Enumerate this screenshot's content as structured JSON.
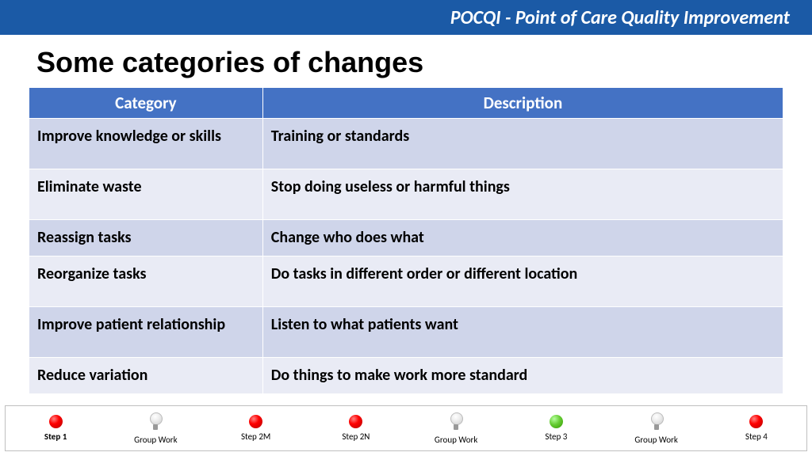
{
  "header": {
    "title": "POCQI - Point of Care Quality Improvement"
  },
  "slide": {
    "title": "Some categories of changes"
  },
  "table": {
    "columns": [
      "Category",
      "Description"
    ],
    "rows": [
      [
        "Improve knowledge or skills",
        "Training or standards"
      ],
      [
        "Eliminate waste",
        "Stop doing useless or harmful things"
      ],
      [
        "Reassign tasks",
        "Change who does what"
      ],
      [
        "Reorganize tasks",
        "Do tasks in different order or different location"
      ],
      [
        "Improve patient relationship",
        "Listen to what patients want"
      ],
      [
        "Reduce variation",
        "Do things to make work more standard"
      ]
    ],
    "header_bg": "#4472c4",
    "header_fg": "#ffffff",
    "row_odd_bg": "#cfd5ea",
    "row_even_bg": "#e9ebf5"
  },
  "footer": {
    "items": [
      {
        "label": "Step 1",
        "icon": "red",
        "bold": true
      },
      {
        "label": "Group Work",
        "icon": "bulb",
        "bold": false
      },
      {
        "label": "Step 2M",
        "icon": "red",
        "bold": false
      },
      {
        "label": "Step 2N",
        "icon": "red",
        "bold": false
      },
      {
        "label": "Group Work",
        "icon": "bulb",
        "bold": false
      },
      {
        "label": "Step 3",
        "icon": "green",
        "bold": false
      },
      {
        "label": "Group Work",
        "icon": "bulb",
        "bold": false
      },
      {
        "label": "Step 4",
        "icon": "red",
        "bold": false
      }
    ]
  }
}
